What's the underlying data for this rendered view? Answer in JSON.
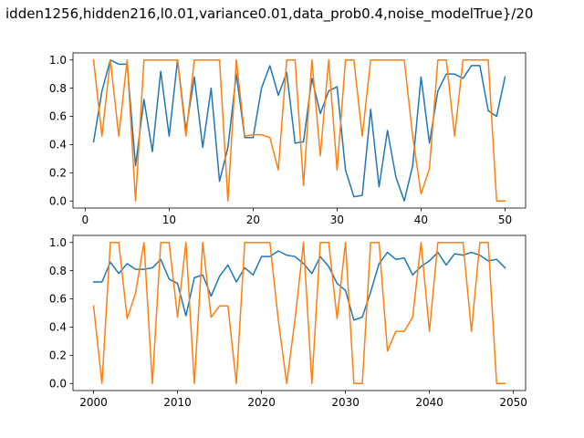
{
  "figure": {
    "title": "idden1256,hidden216,l0.01,variance0.01,data_prob0.4,noise_modelTrue}/20"
  },
  "colors": {
    "blue": "#1f77b4",
    "orange": "#ff7f0e"
  },
  "chart_data": [
    {
      "type": "line",
      "xlim": [
        -1.45,
        52.45
      ],
      "ylim": [
        -0.05,
        1.05
      ],
      "xticks": [
        0,
        10,
        20,
        30,
        40,
        50
      ],
      "yticks": [
        0.0,
        0.2,
        0.4,
        0.6,
        0.8,
        1.0
      ],
      "xtick_labels": [
        "0",
        "10",
        "20",
        "30",
        "40",
        "50"
      ],
      "ytick_labels": [
        "0.0",
        "0.2",
        "0.4",
        "0.6",
        "0.8",
        "1.0"
      ],
      "x": [
        1,
        2,
        3,
        4,
        5,
        6,
        7,
        8,
        9,
        10,
        11,
        12,
        13,
        14,
        15,
        16,
        17,
        18,
        19,
        20,
        21,
        22,
        23,
        24,
        25,
        26,
        27,
        28,
        29,
        30,
        31,
        32,
        33,
        34,
        35,
        36,
        37,
        38,
        39,
        40,
        41,
        42,
        43,
        44,
        45,
        46,
        47,
        48,
        49,
        50
      ],
      "series": [
        {
          "color": "blue",
          "values": [
            0.42,
            0.78,
            1.0,
            0.97,
            0.97,
            0.25,
            0.72,
            0.35,
            0.92,
            0.46,
            1.0,
            0.5,
            0.88,
            0.38,
            0.8,
            0.14,
            0.38,
            0.9,
            0.45,
            0.45,
            0.8,
            0.96,
            0.75,
            0.91,
            0.41,
            0.42,
            0.87,
            0.62,
            0.78,
            0.81,
            0.22,
            0.03,
            0.04,
            0.65,
            0.1,
            0.5,
            0.17,
            0.0,
            0.25,
            0.88,
            0.41,
            0.78,
            0.9,
            0.9,
            0.87,
            0.96,
            0.96,
            0.64,
            0.6,
            0.88
          ]
        },
        {
          "color": "orange",
          "values": [
            1.0,
            0.46,
            1.0,
            0.46,
            1.0,
            0.0,
            1.0,
            1.0,
            1.0,
            1.0,
            1.0,
            0.46,
            1.0,
            1.0,
            1.0,
            1.0,
            0.0,
            1.0,
            0.46,
            0.47,
            0.47,
            0.45,
            0.22,
            1.0,
            1.0,
            0.11,
            1.0,
            0.32,
            1.0,
            0.22,
            1.0,
            1.0,
            0.46,
            1.0,
            1.0,
            1.0,
            1.0,
            1.0,
            0.46,
            0.05,
            0.23,
            1.0,
            1.0,
            0.46,
            1.0,
            1.0,
            1.0,
            1.0,
            0.0,
            0.0
          ]
        }
      ]
    },
    {
      "type": "line",
      "xlim": [
        1997.55,
        2051.45
      ],
      "ylim": [
        -0.05,
        1.05
      ],
      "xticks": [
        2000,
        2010,
        2020,
        2030,
        2040,
        2050
      ],
      "yticks": [
        0.0,
        0.2,
        0.4,
        0.6,
        0.8,
        1.0
      ],
      "xtick_labels": [
        "2000",
        "2010",
        "2020",
        "2030",
        "2040",
        "2050"
      ],
      "ytick_labels": [
        "0.0",
        "0.2",
        "0.4",
        "0.6",
        "0.8",
        "1.0"
      ],
      "x": [
        2000,
        2001,
        2002,
        2003,
        2004,
        2005,
        2006,
        2007,
        2008,
        2009,
        2010,
        2011,
        2012,
        2013,
        2014,
        2015,
        2016,
        2017,
        2018,
        2019,
        2020,
        2021,
        2022,
        2023,
        2024,
        2025,
        2026,
        2027,
        2028,
        2029,
        2030,
        2031,
        2032,
        2033,
        2034,
        2035,
        2036,
        2037,
        2038,
        2039,
        2040,
        2041,
        2042,
        2043,
        2044,
        2045,
        2046,
        2047,
        2048,
        2049
      ],
      "series": [
        {
          "color": "blue",
          "values": [
            0.72,
            0.72,
            0.86,
            0.78,
            0.85,
            0.81,
            0.81,
            0.82,
            0.88,
            0.74,
            0.71,
            0.48,
            0.75,
            0.77,
            0.62,
            0.76,
            0.84,
            0.72,
            0.82,
            0.77,
            0.9,
            0.9,
            0.94,
            0.91,
            0.9,
            0.85,
            0.78,
            0.9,
            0.83,
            0.71,
            0.66,
            0.45,
            0.47,
            0.65,
            0.85,
            0.93,
            0.88,
            0.89,
            0.77,
            0.83,
            0.87,
            0.93,
            0.84,
            0.92,
            0.91,
            0.93,
            0.91,
            0.87,
            0.88,
            0.82
          ]
        },
        {
          "color": "orange",
          "values": [
            0.55,
            0.0,
            1.0,
            1.0,
            0.46,
            0.64,
            1.0,
            0.0,
            1.0,
            1.0,
            0.47,
            1.0,
            0.0,
            1.0,
            0.47,
            0.55,
            0.55,
            0.0,
            1.0,
            1.0,
            1.0,
            1.0,
            0.45,
            0.0,
            0.46,
            1.0,
            0.0,
            1.0,
            1.0,
            0.46,
            1.0,
            0.0,
            0.0,
            1.0,
            1.0,
            0.23,
            0.37,
            0.37,
            0.47,
            1.0,
            0.37,
            1.0,
            1.0,
            1.0,
            1.0,
            0.37,
            1.0,
            1.0,
            0.0,
            0.0
          ]
        }
      ]
    }
  ]
}
